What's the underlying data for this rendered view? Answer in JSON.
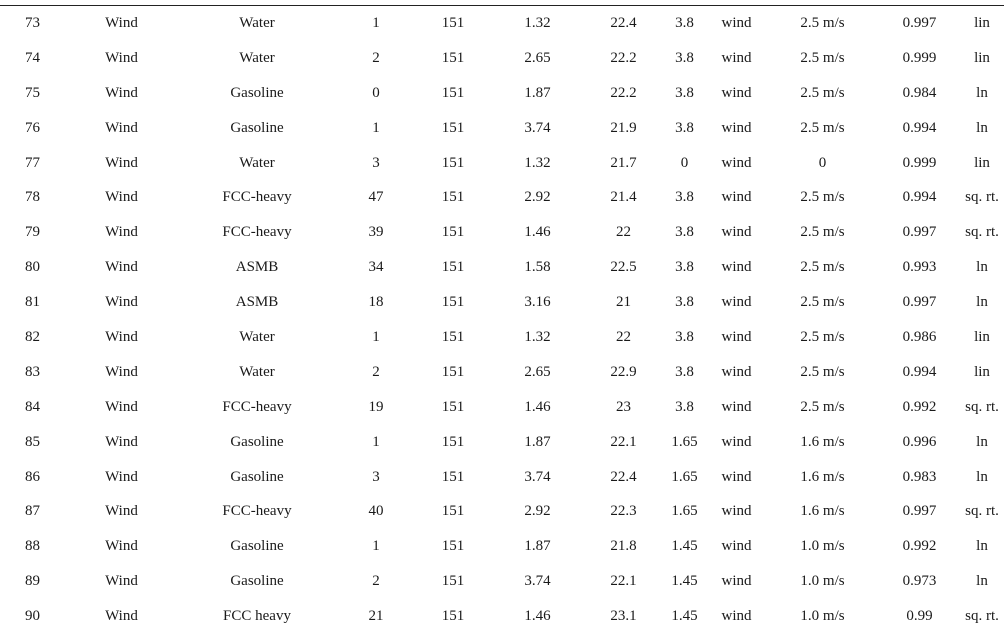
{
  "table": {
    "rows": [
      [
        "73",
        "Wind",
        "Water",
        "1",
        "151",
        "1.32",
        "22.4",
        "3.8",
        "wind",
        "2.5 m/s",
        "0.997",
        "lin"
      ],
      [
        "74",
        "Wind",
        "Water",
        "2",
        "151",
        "2.65",
        "22.2",
        "3.8",
        "wind",
        "2.5 m/s",
        "0.999",
        "lin"
      ],
      [
        "75",
        "Wind",
        "Gasoline",
        "0",
        "151",
        "1.87",
        "22.2",
        "3.8",
        "wind",
        "2.5 m/s",
        "0.984",
        "ln"
      ],
      [
        "76",
        "Wind",
        "Gasoline",
        "1",
        "151",
        "3.74",
        "21.9",
        "3.8",
        "wind",
        "2.5 m/s",
        "0.994",
        "ln"
      ],
      [
        "77",
        "Wind",
        "Water",
        "3",
        "151",
        "1.32",
        "21.7",
        "0",
        "wind",
        "0",
        "0.999",
        "lin"
      ],
      [
        "78",
        "Wind",
        "FCC-heavy",
        "47",
        "151",
        "2.92",
        "21.4",
        "3.8",
        "wind",
        "2.5 m/s",
        "0.994",
        "sq. rt."
      ],
      [
        "79",
        "Wind",
        "FCC-heavy",
        "39",
        "151",
        "1.46",
        "22",
        "3.8",
        "wind",
        "2.5 m/s",
        "0.997",
        "sq. rt."
      ],
      [
        "80",
        "Wind",
        "ASMB",
        "34",
        "151",
        "1.58",
        "22.5",
        "3.8",
        "wind",
        "2.5 m/s",
        "0.993",
        "ln"
      ],
      [
        "81",
        "Wind",
        "ASMB",
        "18",
        "151",
        "3.16",
        "21",
        "3.8",
        "wind",
        "2.5 m/s",
        "0.997",
        "ln"
      ],
      [
        "82",
        "Wind",
        "Water",
        "1",
        "151",
        "1.32",
        "22",
        "3.8",
        "wind",
        "2.5 m/s",
        "0.986",
        "lin"
      ],
      [
        "83",
        "Wind",
        "Water",
        "2",
        "151",
        "2.65",
        "22.9",
        "3.8",
        "wind",
        "2.5 m/s",
        "0.994",
        "lin"
      ],
      [
        "84",
        "Wind",
        "FCC-heavy",
        "19",
        "151",
        "1.46",
        "23",
        "3.8",
        "wind",
        "2.5 m/s",
        "0.992",
        "sq. rt."
      ],
      [
        "85",
        "Wind",
        "Gasoline",
        "1",
        "151",
        "1.87",
        "22.1",
        "1.65",
        "wind",
        "1.6 m/s",
        "0.996",
        "ln"
      ],
      [
        "86",
        "Wind",
        "Gasoline",
        "3",
        "151",
        "3.74",
        "22.4",
        "1.65",
        "wind",
        "1.6 m/s",
        "0.983",
        "ln"
      ],
      [
        "87",
        "Wind",
        "FCC-heavy",
        "40",
        "151",
        "2.92",
        "22.3",
        "1.65",
        "wind",
        "1.6 m/s",
        "0.997",
        "sq. rt."
      ],
      [
        "88",
        "Wind",
        "Gasoline",
        "1",
        "151",
        "1.87",
        "21.8",
        "1.45",
        "wind",
        "1.0 m/s",
        "0.992",
        "ln"
      ],
      [
        "89",
        "Wind",
        "Gasoline",
        "2",
        "151",
        "3.74",
        "22.1",
        "1.45",
        "wind",
        "1.0 m/s",
        "0.973",
        "ln"
      ],
      [
        "90",
        "Wind",
        "FCC heavy",
        "21",
        "151",
        "1.46",
        "23.1",
        "1.45",
        "wind",
        "1.0 m/s",
        "0.99",
        "sq. rt."
      ]
    ]
  }
}
